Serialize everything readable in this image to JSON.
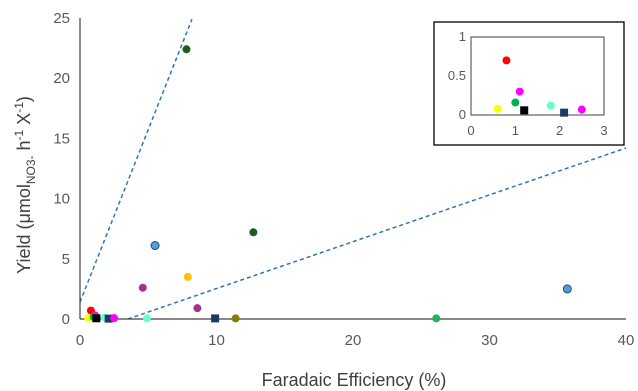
{
  "chart_data": {
    "type": "scatter",
    "title": "",
    "xlabel": "Faradaic Efficiency (%)",
    "ylabel": {
      "main": "Yield (μmol",
      "sub": "NO3-",
      "mid": " h",
      "sup1": "-1",
      "end": " X",
      "sup2": "-1",
      "close": ")"
    },
    "xlim": [
      0,
      40
    ],
    "ylim": [
      0,
      25
    ],
    "xticks": [
      "0",
      "10",
      "20",
      "30",
      "40"
    ],
    "yticks": [
      "0",
      "5",
      "10",
      "15",
      "20",
      "25"
    ],
    "grid": false,
    "legend": "none",
    "points": [
      {
        "x": 7.8,
        "y": 22.4,
        "color": "#1e5b1e",
        "marker": "circle"
      },
      {
        "x": 12.7,
        "y": 7.2,
        "color": "#1e5b1e",
        "marker": "circle"
      },
      {
        "x": 5.5,
        "y": 6.1,
        "color": "#5b9bd5",
        "marker": "circle"
      },
      {
        "x": 7.9,
        "y": 3.5,
        "color": "#ffc000",
        "marker": "circle"
      },
      {
        "x": 4.6,
        "y": 2.6,
        "color": "#a0338c",
        "marker": "circle"
      },
      {
        "x": 8.6,
        "y": 0.9,
        "color": "#a0338c",
        "marker": "circle"
      },
      {
        "x": 35.7,
        "y": 2.5,
        "color": "#5b9bd5",
        "marker": "circle"
      },
      {
        "x": 26.1,
        "y": 0.05,
        "color": "#1fb35a",
        "marker": "circle"
      },
      {
        "x": 11.4,
        "y": 0.05,
        "color": "#7f7f00",
        "marker": "circle"
      },
      {
        "x": 9.9,
        "y": 0.05,
        "color": "#1f3864",
        "marker": "square"
      },
      {
        "x": 4.9,
        "y": 0.05,
        "color": "#66ffcc",
        "marker": "circle"
      },
      {
        "x": 0.8,
        "y": 0.7,
        "color": "#ff0000",
        "marker": "circle"
      },
      {
        "x": 1.1,
        "y": 0.3,
        "color": "#ff00ff",
        "marker": "circle"
      },
      {
        "x": 0.6,
        "y": 0.08,
        "color": "#ffff00",
        "marker": "circle"
      },
      {
        "x": 1.0,
        "y": 0.16,
        "color": "#00b050",
        "marker": "circle"
      },
      {
        "x": 1.2,
        "y": 0.06,
        "color": "#000000",
        "marker": "square"
      },
      {
        "x": 1.8,
        "y": 0.12,
        "color": "#66ffcc",
        "marker": "circle"
      },
      {
        "x": 2.1,
        "y": 0.03,
        "color": "#1f3864",
        "marker": "square"
      },
      {
        "x": 2.5,
        "y": 0.07,
        "color": "#ff00ff",
        "marker": "circle"
      }
    ],
    "guide_lines": [
      {
        "x": [
          0,
          8.2
        ],
        "y": [
          1.4,
          24.9
        ],
        "color": "#2e75b6",
        "style": "dashed"
      },
      {
        "x": [
          3.5,
          40
        ],
        "y": [
          0,
          14.2
        ],
        "color": "#2e75b6",
        "style": "dashed"
      }
    ],
    "inset": {
      "xlim": [
        0,
        3
      ],
      "ylim": [
        0,
        1
      ],
      "xticks": [
        "0",
        "1",
        "2",
        "3"
      ],
      "yticks": [
        "0",
        "0.5",
        "1"
      ],
      "points": [
        {
          "x": 0.8,
          "y": 0.7,
          "color": "#ff0000",
          "marker": "circle"
        },
        {
          "x": 1.1,
          "y": 0.3,
          "color": "#ff00ff",
          "marker": "circle"
        },
        {
          "x": 0.6,
          "y": 0.08,
          "color": "#ffff00",
          "marker": "circle"
        },
        {
          "x": 1.0,
          "y": 0.16,
          "color": "#00b050",
          "marker": "circle"
        },
        {
          "x": 1.2,
          "y": 0.06,
          "color": "#000000",
          "marker": "square"
        },
        {
          "x": 1.8,
          "y": 0.12,
          "color": "#66ffcc",
          "marker": "circle"
        },
        {
          "x": 2.1,
          "y": 0.03,
          "color": "#1f3864",
          "marker": "square"
        },
        {
          "x": 2.5,
          "y": 0.07,
          "color": "#ff00ff",
          "marker": "circle"
        }
      ]
    }
  }
}
